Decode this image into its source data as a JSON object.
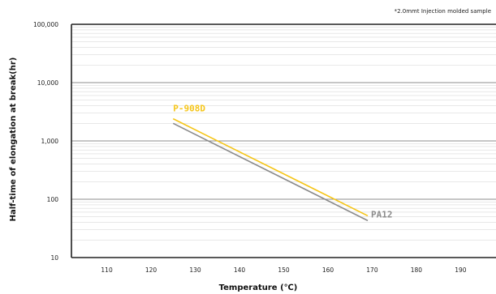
{
  "chart_data": {
    "type": "line",
    "title": "",
    "note": "*2.0mmt Injection molded sample",
    "xlabel": "Temperature (℃)",
    "ylabel": "Half-time of elongation at break(hr)",
    "y_scale": "log",
    "xlim": [
      102,
      198
    ],
    "ylim": [
      10,
      100000
    ],
    "x_ticks": [
      "110",
      "120",
      "130",
      "140",
      "150",
      "160",
      "170",
      "180",
      "190"
    ],
    "y_ticks": [
      "100,000",
      "10,000",
      "1,000",
      "100",
      "10"
    ],
    "grid": true,
    "series": [
      {
        "name": "P-908D",
        "color": "#F5C518",
        "x": [
          125,
          169
        ],
        "y": [
          2400,
          52
        ]
      },
      {
        "name": "PA12",
        "color": "#8A8A8A",
        "x": [
          125,
          169
        ],
        "y": [
          2000,
          43
        ]
      }
    ]
  }
}
